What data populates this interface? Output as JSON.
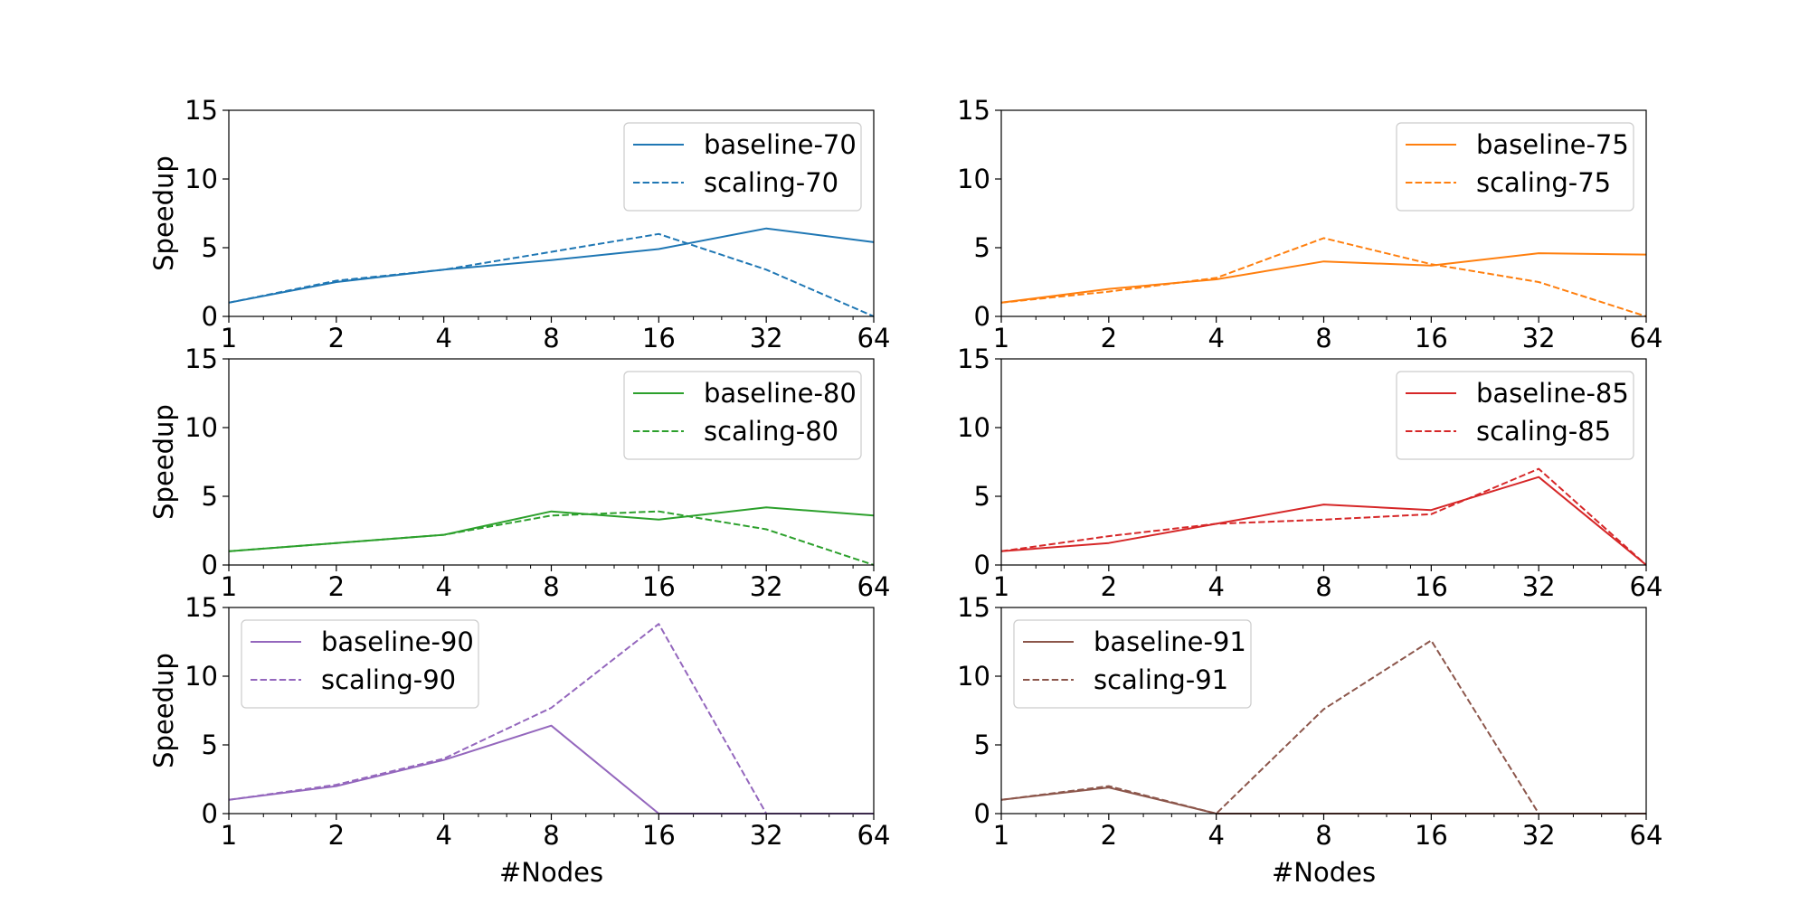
{
  "chart_data": [
    {
      "type": "line",
      "x": [
        1,
        2,
        4,
        8,
        16,
        32,
        64
      ],
      "xscale": "log2",
      "xticks": [
        "1",
        "2",
        "4",
        "8",
        "16",
        "32",
        "64"
      ],
      "xlabel": "",
      "ylabel": "Speedup",
      "ylim": [
        0,
        15
      ],
      "yticks": [
        "0",
        "5",
        "10",
        "15"
      ],
      "legend": "top-right",
      "color": "#1f77b4",
      "series": [
        {
          "name": "baseline-70",
          "style": "solid",
          "values": [
            1.0,
            2.5,
            3.4,
            4.1,
            4.9,
            6.4,
            5.4
          ]
        },
        {
          "name": "scaling-70",
          "style": "dashed",
          "values": [
            1.0,
            2.6,
            3.4,
            4.7,
            6.0,
            3.4,
            0.0
          ]
        }
      ]
    },
    {
      "type": "line",
      "x": [
        1,
        2,
        4,
        8,
        16,
        32,
        64
      ],
      "xscale": "log2",
      "xticks": [
        "1",
        "2",
        "4",
        "8",
        "16",
        "32",
        "64"
      ],
      "xlabel": "",
      "ylabel": "",
      "ylim": [
        0,
        15
      ],
      "yticks": [
        "0",
        "5",
        "10",
        "15"
      ],
      "legend": "top-right",
      "color": "#ff7f0e",
      "series": [
        {
          "name": "baseline-75",
          "style": "solid",
          "values": [
            1.0,
            2.0,
            2.7,
            4.0,
            3.7,
            4.6,
            4.5
          ]
        },
        {
          "name": "scaling-75",
          "style": "dashed",
          "values": [
            1.0,
            1.8,
            2.8,
            5.7,
            3.8,
            2.5,
            0.0
          ]
        }
      ]
    },
    {
      "type": "line",
      "x": [
        1,
        2,
        4,
        8,
        16,
        32,
        64
      ],
      "xscale": "log2",
      "xticks": [
        "1",
        "2",
        "4",
        "8",
        "16",
        "32",
        "64"
      ],
      "xlabel": "",
      "ylabel": "Speedup",
      "ylim": [
        0,
        15
      ],
      "yticks": [
        "0",
        "5",
        "10",
        "15"
      ],
      "legend": "top-right",
      "color": "#2ca02c",
      "series": [
        {
          "name": "baseline-80",
          "style": "solid",
          "values": [
            1.0,
            1.6,
            2.2,
            3.9,
            3.3,
            4.2,
            3.6
          ]
        },
        {
          "name": "scaling-80",
          "style": "dashed",
          "values": [
            1.0,
            1.6,
            2.2,
            3.6,
            3.9,
            2.6,
            0.0
          ]
        }
      ]
    },
    {
      "type": "line",
      "x": [
        1,
        2,
        4,
        8,
        16,
        32,
        64
      ],
      "xscale": "log2",
      "xticks": [
        "1",
        "2",
        "4",
        "8",
        "16",
        "32",
        "64"
      ],
      "xlabel": "",
      "ylabel": "",
      "ylim": [
        0,
        15
      ],
      "yticks": [
        "0",
        "5",
        "10",
        "15"
      ],
      "legend": "top-right",
      "color": "#d62728",
      "series": [
        {
          "name": "baseline-85",
          "style": "solid",
          "values": [
            1.0,
            1.6,
            3.0,
            4.4,
            4.0,
            6.4,
            0.0
          ]
        },
        {
          "name": "scaling-85",
          "style": "dashed",
          "values": [
            1.0,
            2.1,
            3.0,
            3.3,
            3.7,
            7.0,
            0.0
          ]
        }
      ]
    },
    {
      "type": "line",
      "x": [
        1,
        2,
        4,
        8,
        16,
        32,
        64
      ],
      "xscale": "log2",
      "xticks": [
        "1",
        "2",
        "4",
        "8",
        "16",
        "32",
        "64"
      ],
      "xlabel": "#Nodes",
      "ylabel": "Speedup",
      "ylim": [
        0,
        15
      ],
      "yticks": [
        "0",
        "5",
        "10",
        "15"
      ],
      "legend": "top-left",
      "color": "#9467bd",
      "series": [
        {
          "name": "baseline-90",
          "style": "solid",
          "values": [
            1.0,
            2.0,
            3.9,
            6.4,
            0.0,
            0.0,
            0.0
          ]
        },
        {
          "name": "scaling-90",
          "style": "dashed",
          "values": [
            1.0,
            2.1,
            4.0,
            7.7,
            13.8,
            0.0,
            0.0
          ]
        }
      ]
    },
    {
      "type": "line",
      "x": [
        1,
        2,
        4,
        8,
        16,
        32,
        64
      ],
      "xscale": "log2",
      "xticks": [
        "1",
        "2",
        "4",
        "8",
        "16",
        "32",
        "64"
      ],
      "xlabel": "#Nodes",
      "ylabel": "",
      "ylim": [
        0,
        15
      ],
      "yticks": [
        "0",
        "5",
        "10",
        "15"
      ],
      "legend": "top-left",
      "color": "#8c564b",
      "series": [
        {
          "name": "baseline-91",
          "style": "solid",
          "values": [
            1.0,
            1.9,
            0.0,
            0.0,
            0.0,
            0.0,
            0.0
          ]
        },
        {
          "name": "scaling-91",
          "style": "dashed",
          "values": [
            1.0,
            2.0,
            0.0,
            7.6,
            12.6,
            0.0,
            0.0
          ]
        }
      ]
    }
  ]
}
